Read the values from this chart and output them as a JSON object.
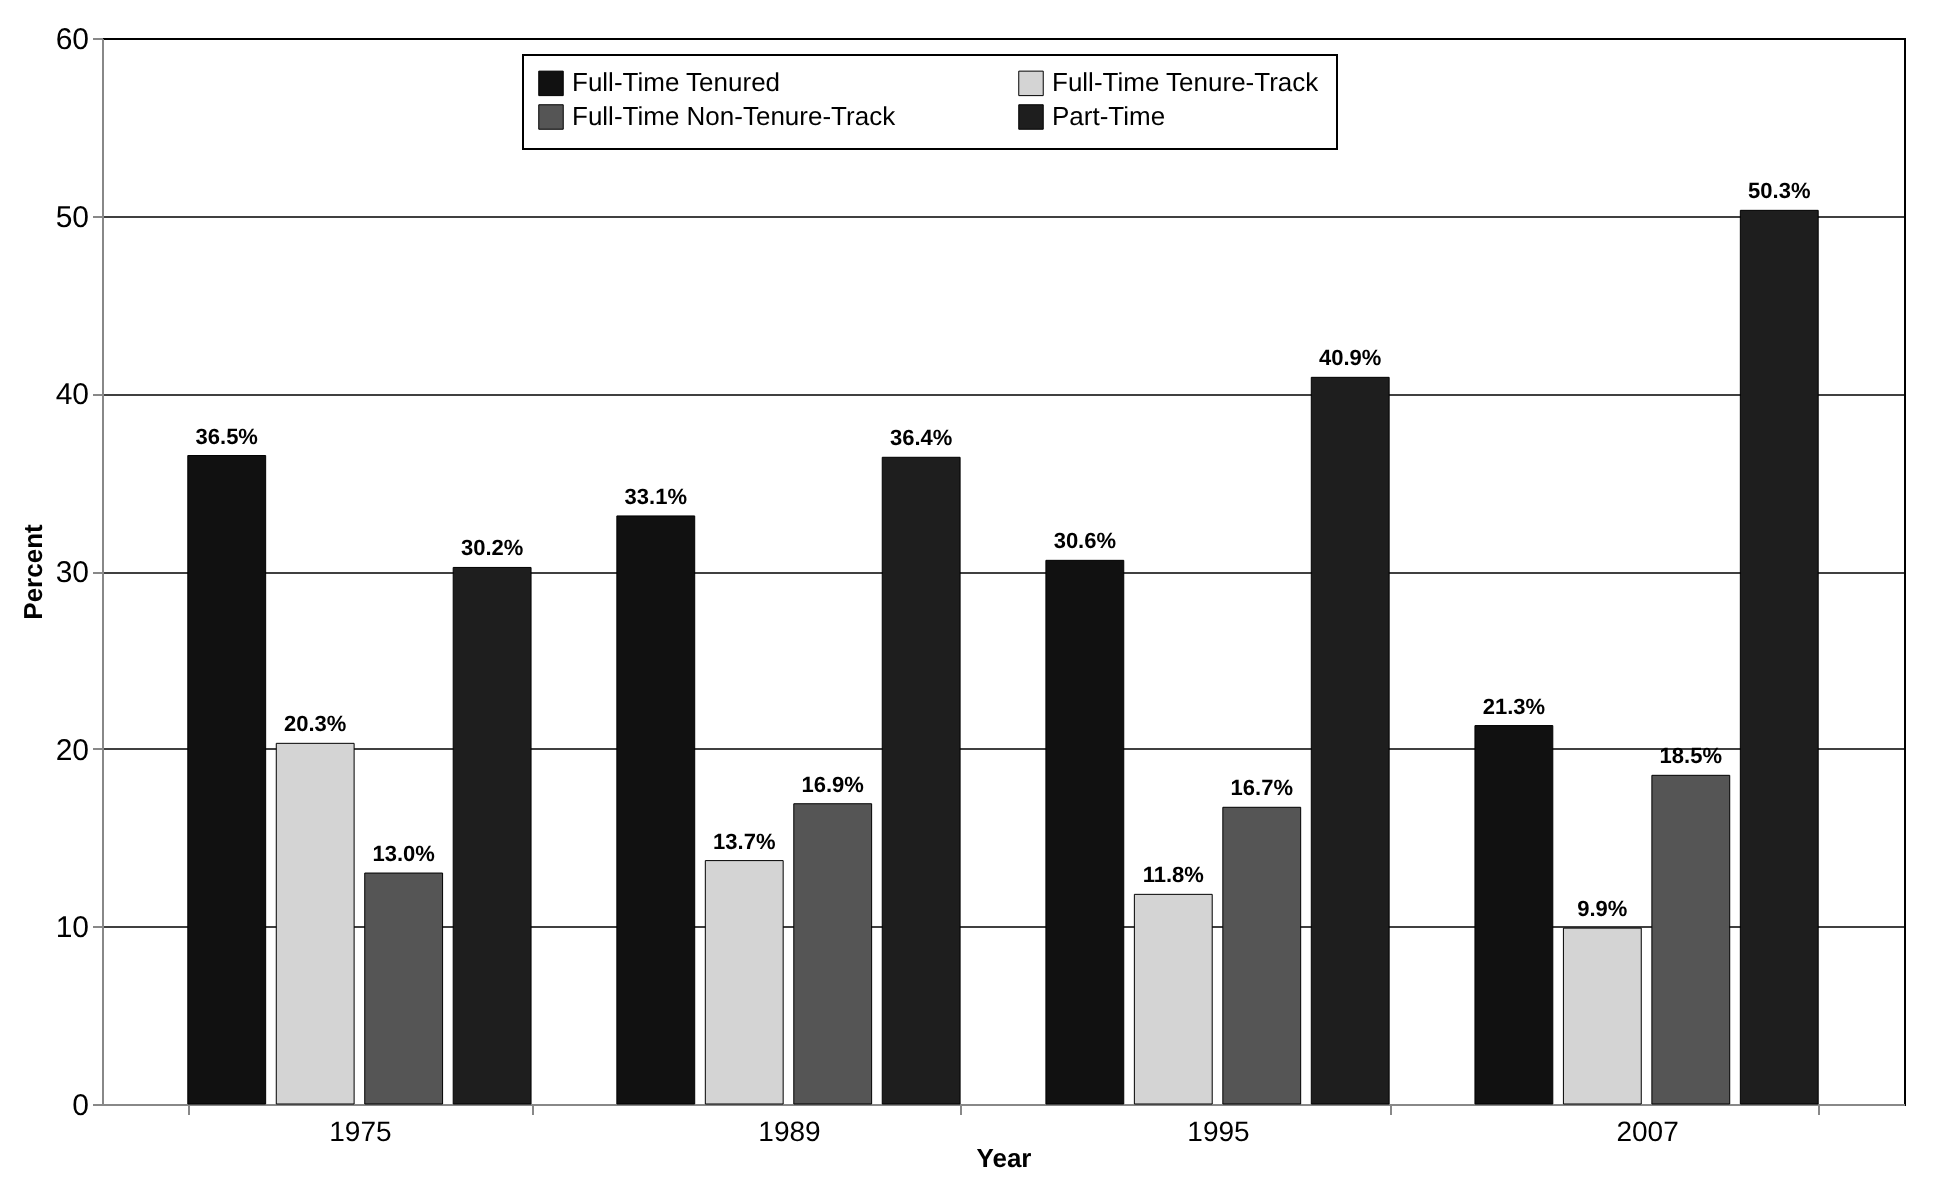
{
  "chart_data": {
    "type": "bar",
    "xlabel": "Year",
    "ylabel": "Percent",
    "categories": [
      "1975",
      "1989",
      "1995",
      "2007"
    ],
    "series": [
      {
        "name": "Full-Time Tenured",
        "color": "#111111",
        "values": [
          36.5,
          33.1,
          30.6,
          21.3
        ],
        "value_labels": [
          "36.5%",
          "33.1%",
          "30.6%",
          "21.3%"
        ]
      },
      {
        "name": "Full-Time Tenure-Track",
        "color": "#d4d4d4",
        "values": [
          20.3,
          13.7,
          11.8,
          9.9
        ],
        "value_labels": [
          "20.3%",
          "13.7%",
          "11.8%",
          "9.9%"
        ]
      },
      {
        "name": "Full-Time Non-Tenure-Track",
        "color": "#555555",
        "values": [
          13.0,
          16.9,
          16.7,
          18.5
        ],
        "value_labels": [
          "13.0%",
          "16.9%",
          "16.7%",
          "18.5%"
        ]
      },
      {
        "name": "Part-Time",
        "color": "#1e1e1e",
        "values": [
          30.2,
          36.4,
          40.9,
          50.3
        ],
        "value_labels": [
          "30.2%",
          "36.4%",
          "40.9%",
          "50.3%"
        ]
      }
    ],
    "ylim": [
      0,
      60
    ],
    "yticks": [
      0,
      10,
      20,
      30,
      40,
      50,
      60
    ],
    "grid": "y",
    "legend": "top"
  }
}
